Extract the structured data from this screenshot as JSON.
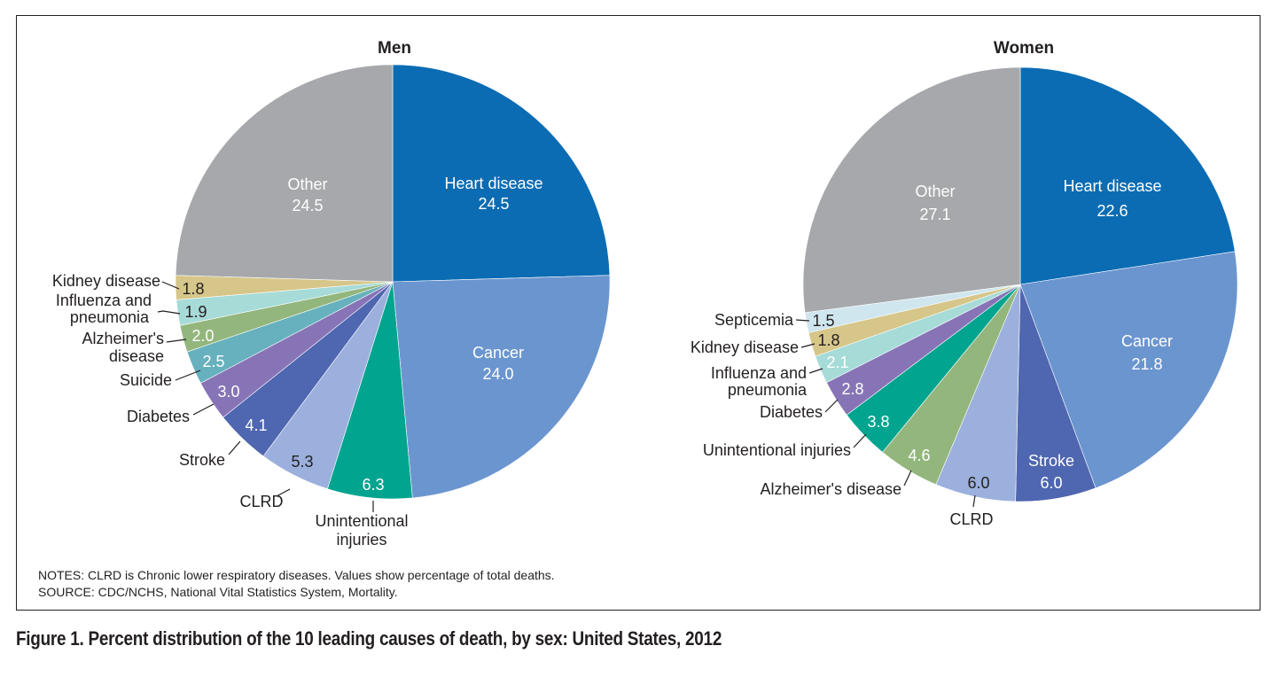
{
  "chart_data": [
    {
      "type": "pie",
      "title": "Men",
      "unit": "percent of total deaths",
      "slices": [
        {
          "name": "Heart disease",
          "value": 24.5,
          "color": "#0b6cb3"
        },
        {
          "name": "Cancer",
          "value": 24.0,
          "color": "#6b95cf"
        },
        {
          "name": "Unintentional injuries",
          "value": 6.3,
          "color": "#00a48f"
        },
        {
          "name": "CLRD",
          "value": 5.3,
          "color": "#9bb0dc"
        },
        {
          "name": "Stroke",
          "value": 4.1,
          "color": "#4f66b0"
        },
        {
          "name": "Diabetes",
          "value": 3.0,
          "color": "#8774b6"
        },
        {
          "name": "Suicide",
          "value": 2.5,
          "color": "#66b1bd"
        },
        {
          "name": "Alzheimer's disease",
          "value": 2.0,
          "color": "#93b67d"
        },
        {
          "name": "Influenza and pneumonia",
          "value": 1.9,
          "color": "#a6dbd8"
        },
        {
          "name": "Kidney disease",
          "value": 1.8,
          "color": "#d6c689"
        },
        {
          "name": "Other",
          "value": 24.5,
          "color": "#a6a8ab"
        }
      ]
    },
    {
      "type": "pie",
      "title": "Women",
      "unit": "percent of total deaths",
      "slices": [
        {
          "name": "Heart disease",
          "value": 22.6,
          "color": "#0b6cb3"
        },
        {
          "name": "Cancer",
          "value": 21.8,
          "color": "#6b95cf"
        },
        {
          "name": "Stroke",
          "value": 6.0,
          "color": "#4f66b0"
        },
        {
          "name": "CLRD",
          "value": 6.0,
          "color": "#9bb0dc"
        },
        {
          "name": "Alzheimer's disease",
          "value": 4.6,
          "color": "#93b67d"
        },
        {
          "name": "Unintentional injuries",
          "value": 3.8,
          "color": "#00a48f"
        },
        {
          "name": "Diabetes",
          "value": 2.8,
          "color": "#8774b6"
        },
        {
          "name": "Influenza and pneumonia",
          "value": 2.1,
          "color": "#a6dbd8"
        },
        {
          "name": "Kidney disease",
          "value": 1.8,
          "color": "#d6c689"
        },
        {
          "name": "Septicemia",
          "value": 1.5,
          "color": "#cfe6ee"
        },
        {
          "name": "Other",
          "value": 27.1,
          "color": "#a6a8ab"
        }
      ]
    }
  ],
  "labels": {
    "men": {
      "heart_name": "Heart disease",
      "heart_value": "24.5",
      "cancer_name": "Cancer",
      "cancer_value": "24.0",
      "other_name": "Other",
      "other_value": "24.5",
      "injuries_value": "6.3",
      "injuries_line1": "Unintentional",
      "injuries_line2": "injuries",
      "clrd_value": "5.3",
      "clrd_name": "CLRD",
      "stroke_value": "4.1",
      "stroke_name": "Stroke",
      "diabetes_value": "3.0",
      "diabetes_name": "Diabetes",
      "suicide_value": "2.5",
      "suicide_name": "Suicide",
      "alz_value": "2.0",
      "alz_line1": "Alzheimer's",
      "alz_line2": "disease",
      "flu_value": "1.9",
      "flu_line1": "Influenza and",
      "flu_line2": "pneumonia",
      "kidney_value": "1.8",
      "kidney_name": "Kidney disease"
    },
    "women": {
      "heart_name": "Heart disease",
      "heart_value": "22.6",
      "cancer_name": "Cancer",
      "cancer_value": "21.8",
      "other_name": "Other",
      "other_value": "27.1",
      "stroke_name": "Stroke",
      "stroke_value": "6.0",
      "clrd_value": "6.0",
      "clrd_name": "CLRD",
      "alz_value": "4.6",
      "alz_name": "Alzheimer's disease",
      "injuries_value": "3.8",
      "injuries_name": "Unintentional injuries",
      "diabetes_value": "2.8",
      "diabetes_name": "Diabetes",
      "flu_value": "2.1",
      "flu_line1": "Influenza and",
      "flu_line2": "pneumonia",
      "kidney_value": "1.8",
      "kidney_name": "Kidney disease",
      "septicemia_value": "1.5",
      "septicemia_name": "Septicemia"
    }
  },
  "notes": {
    "line1": "NOTES: CLRD is Chronic lower respiratory diseases. Values show percentage of total deaths.",
    "line2": "SOURCE: CDC/NCHS, National Vital Statistics System, Mortality."
  },
  "caption": "Figure 1. Percent distribution of the 10 leading causes of death, by sex: United States, 2012"
}
